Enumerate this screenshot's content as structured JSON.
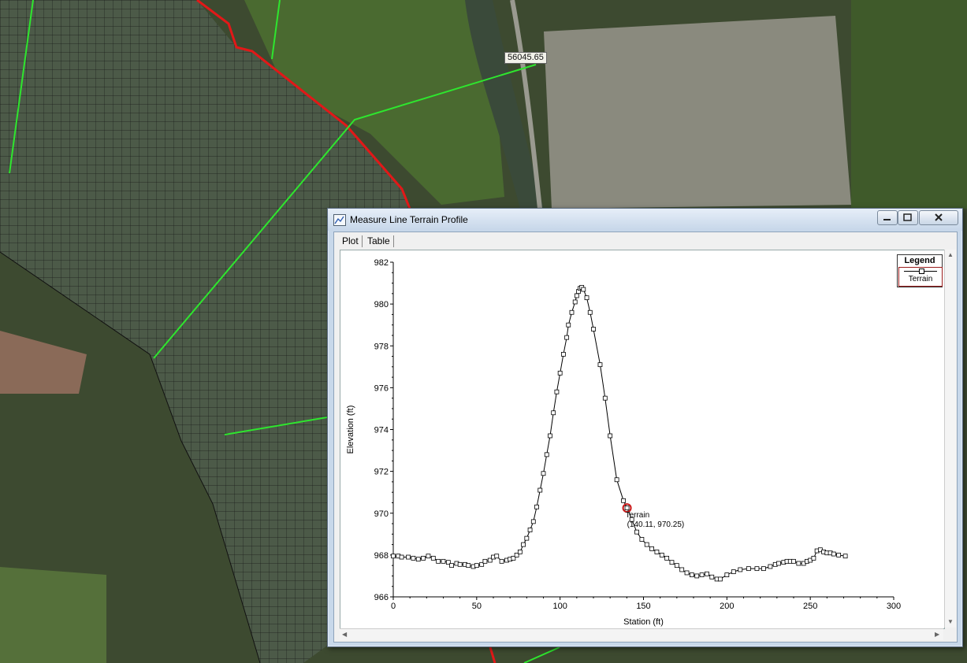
{
  "map": {
    "cross_section_label": "56045.65"
  },
  "window": {
    "title": "Measure Line Terrain Profile",
    "icon": "chart-window-icon",
    "controls": [
      "minimize-icon",
      "maximize-icon",
      "close-icon"
    ],
    "tabs": [
      {
        "label": "Plot"
      },
      {
        "label": "Table"
      }
    ]
  },
  "legend": {
    "title": "Legend",
    "entry": "Terrain"
  },
  "tooltip": {
    "label": "Terrain",
    "coords": "(140.11, 970.25)"
  },
  "chart_data": {
    "type": "line",
    "xlabel": "Station  (ft)",
    "ylabel": "Elevation  (ft)",
    "xlim": [
      0,
      300
    ],
    "ylim": [
      966,
      982
    ],
    "xticks": [
      0,
      50,
      100,
      150,
      200,
      250,
      300
    ],
    "yticks": [
      966,
      968,
      970,
      972,
      974,
      976,
      978,
      980,
      982
    ],
    "legend_position": "top-right",
    "series": [
      {
        "name": "Terrain",
        "color": "#000000",
        "marker": "square",
        "x": [
          0,
          3,
          5,
          9,
          12,
          15,
          18,
          21,
          24,
          27,
          30,
          33,
          35,
          38,
          40,
          43,
          45,
          48,
          50,
          53,
          55,
          58,
          60,
          62,
          65,
          68,
          70,
          72,
          74,
          76,
          78,
          80,
          82,
          84,
          86,
          88,
          90,
          92,
          94,
          96,
          98,
          100,
          102,
          104,
          105,
          107,
          109,
          110,
          111,
          112,
          113,
          114,
          116,
          118,
          120,
          124,
          127,
          130,
          134,
          138,
          140.11,
          143,
          146,
          149,
          152,
          155,
          158,
          161,
          164,
          167,
          170,
          173,
          176,
          179,
          182,
          185,
          188,
          191,
          194,
          196,
          200,
          204,
          208,
          213,
          218,
          222,
          226,
          229,
          231,
          234,
          236,
          238,
          240,
          243,
          246,
          248,
          250,
          252,
          254,
          256,
          258,
          260,
          262,
          264,
          267,
          271
        ],
        "y": [
          967.95,
          967.95,
          967.9,
          967.9,
          967.85,
          967.8,
          967.85,
          967.95,
          967.85,
          967.7,
          967.7,
          967.65,
          967.5,
          967.6,
          967.55,
          967.55,
          967.5,
          967.45,
          967.5,
          967.55,
          967.7,
          967.75,
          967.9,
          967.95,
          967.7,
          967.75,
          967.8,
          967.85,
          968.0,
          968.15,
          968.5,
          968.8,
          969.2,
          969.6,
          970.3,
          971.1,
          971.9,
          972.8,
          973.7,
          974.8,
          975.8,
          976.7,
          977.6,
          978.4,
          979.0,
          979.6,
          980.1,
          980.4,
          980.6,
          980.75,
          980.8,
          980.7,
          980.3,
          979.6,
          978.8,
          977.1,
          975.5,
          973.7,
          971.6,
          970.6,
          970.25,
          969.7,
          969.1,
          968.75,
          968.5,
          968.3,
          968.15,
          968.0,
          967.85,
          967.65,
          967.5,
          967.3,
          967.15,
          967.05,
          967.0,
          967.05,
          967.1,
          966.95,
          966.85,
          966.85,
          967.05,
          967.2,
          967.3,
          967.35,
          967.35,
          967.35,
          967.45,
          967.55,
          967.6,
          967.65,
          967.7,
          967.7,
          967.7,
          967.6,
          967.6,
          967.7,
          967.75,
          967.85,
          968.2,
          968.25,
          968.15,
          968.1,
          968.1,
          968.05,
          968.0,
          967.95
        ]
      }
    ]
  }
}
